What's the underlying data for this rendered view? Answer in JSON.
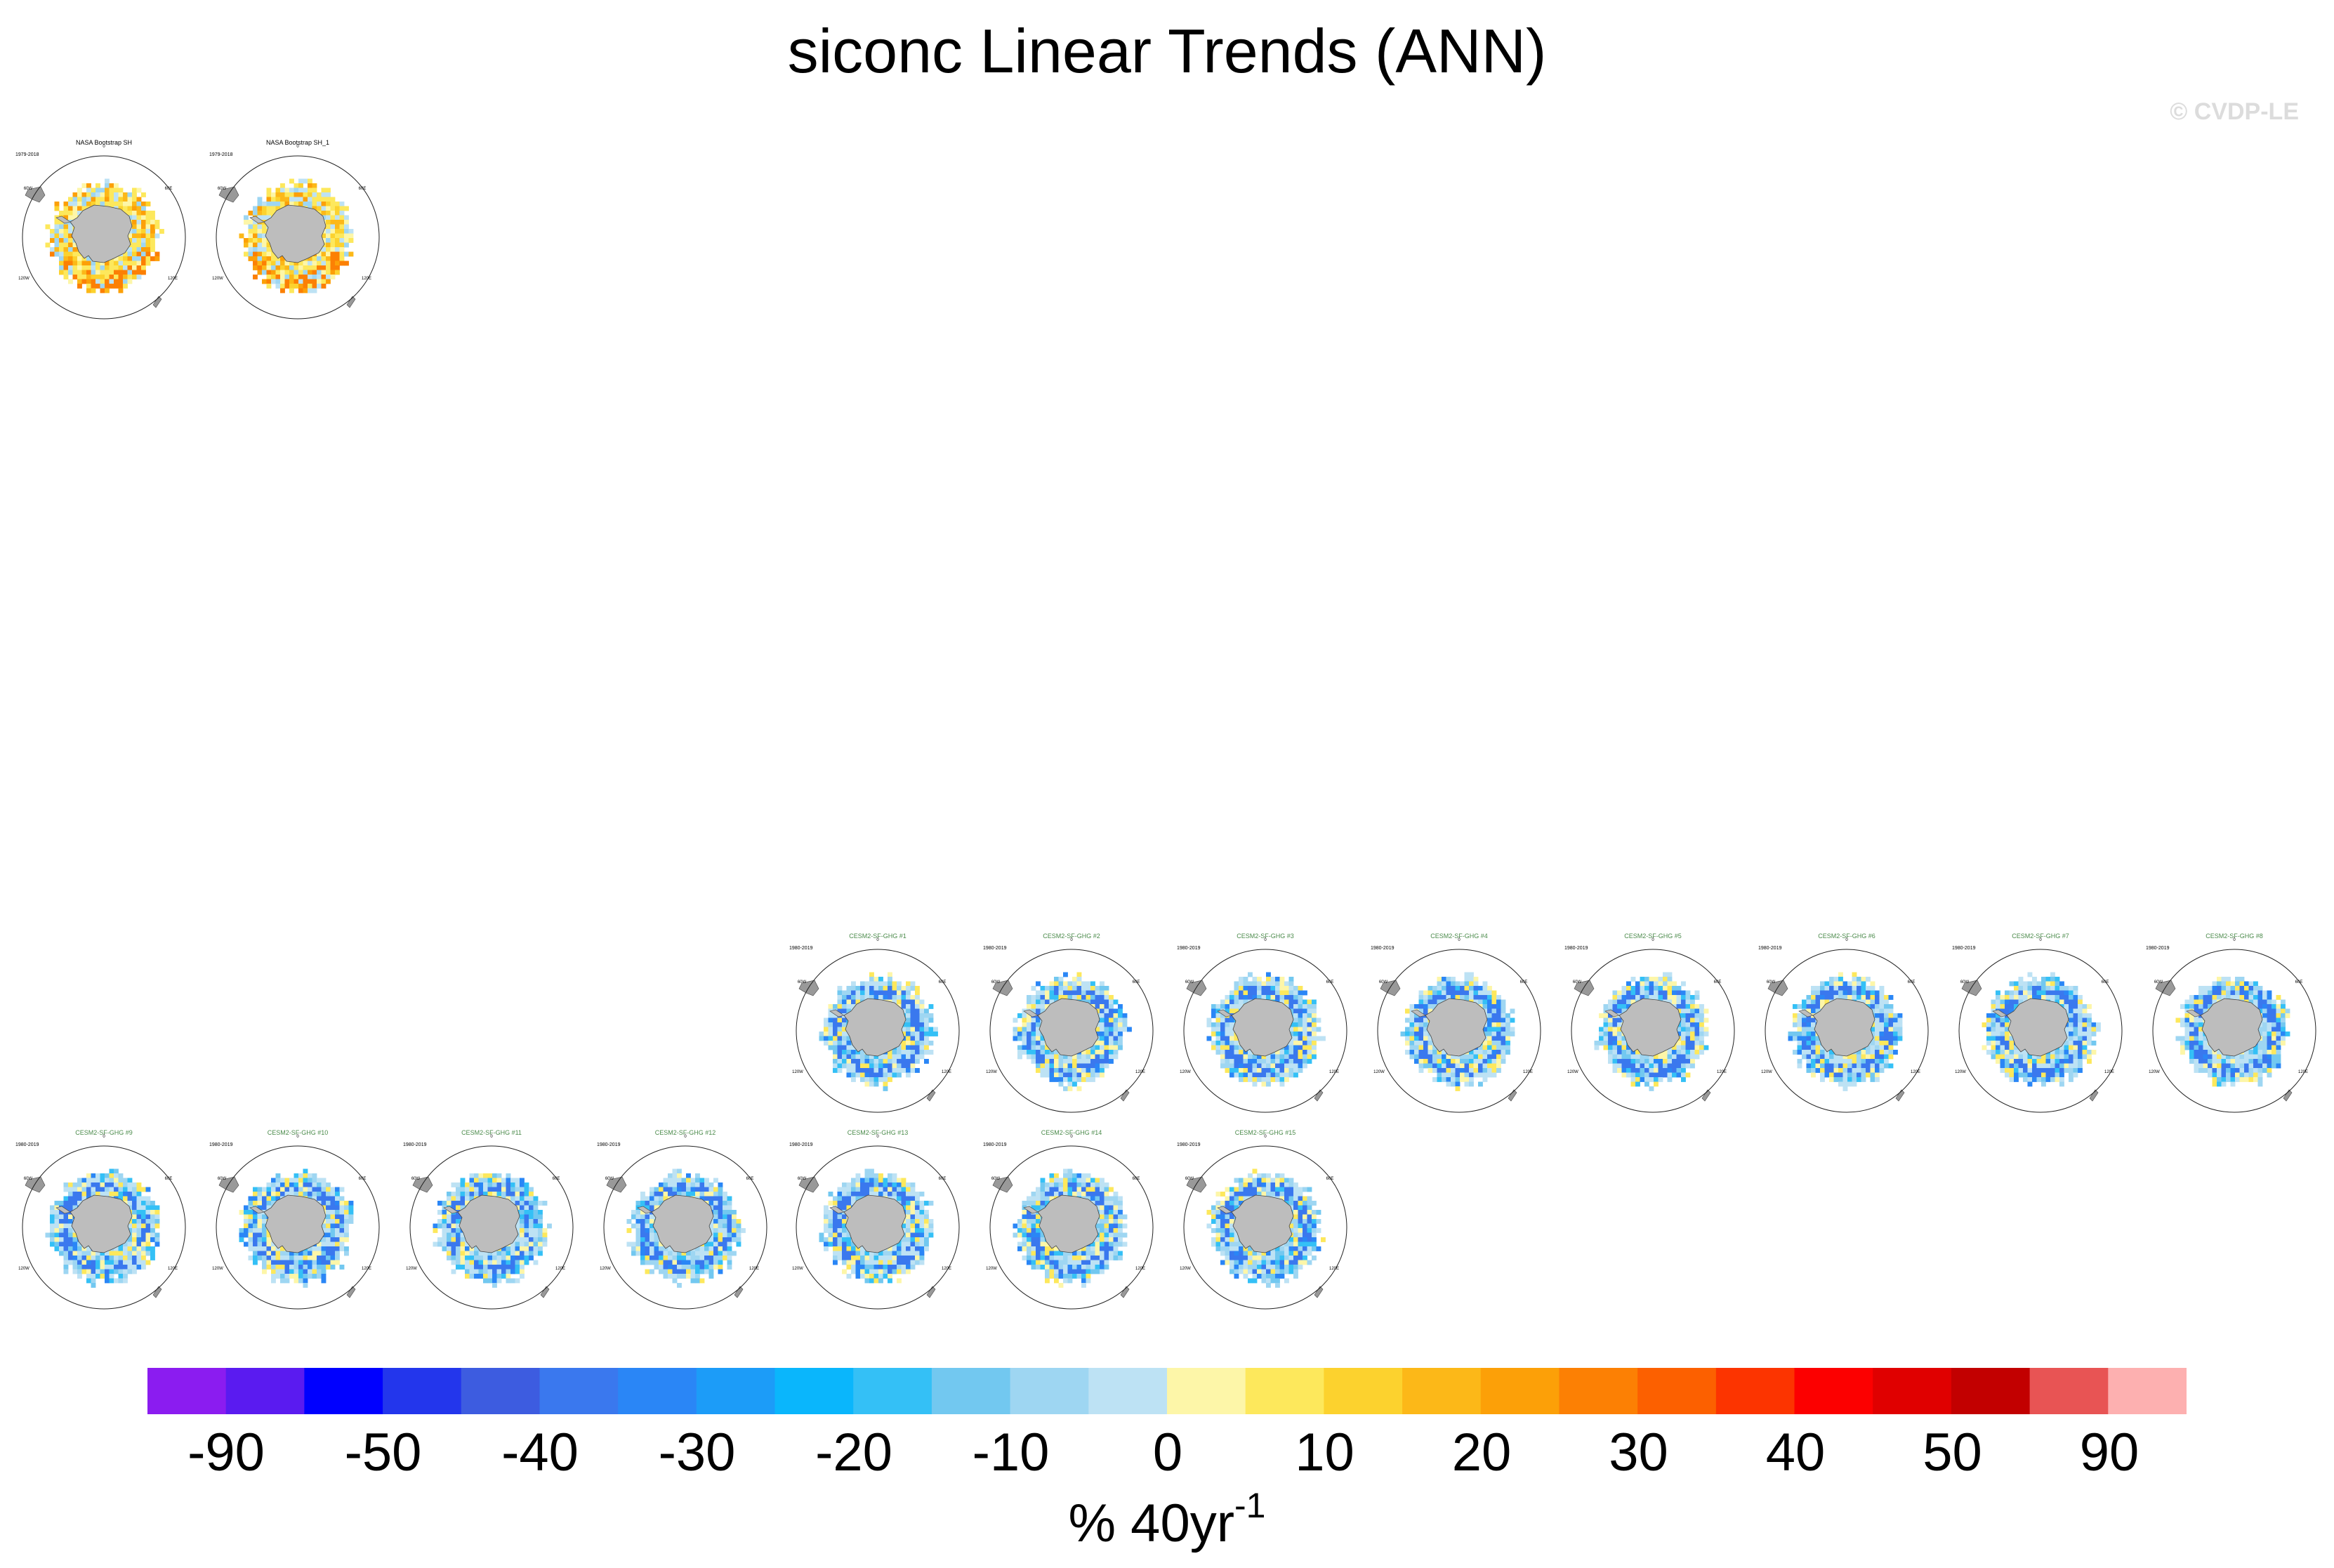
{
  "title": "siconc Linear Trends (ANN)",
  "copyright": "© CVDP-LE",
  "chart_data": {
    "type": "heatmap",
    "title": "siconc Linear Trends (ANN)",
    "projection": "south polar stereographic",
    "grid_labels": [
      "0",
      "60E",
      "120E",
      "180",
      "120W",
      "60W"
    ],
    "panels": [
      {
        "name": "NASA Bootstrap SH",
        "period": "1979-2018",
        "label_color": "#000000",
        "tone": "obs",
        "seed": 3
      },
      {
        "name": "NASA Bootstrap SH_1",
        "period": "1979-2018",
        "label_color": "#000000",
        "tone": "obs",
        "seed": 5
      },
      {
        "name": "CESM2-SF-GHG #1",
        "period": "1980-2019",
        "label_color": "#4a8a4a",
        "tone": "model",
        "seed": 7
      },
      {
        "name": "CESM2-SF-GHG #2",
        "period": "1980-2019",
        "label_color": "#4a8a4a",
        "tone": "model",
        "seed": 11
      },
      {
        "name": "CESM2-SF-GHG #3",
        "period": "1980-2019",
        "label_color": "#4a8a4a",
        "tone": "model",
        "seed": 13
      },
      {
        "name": "CESM2-SF-GHG #4",
        "period": "1980-2019",
        "label_color": "#4a8a4a",
        "tone": "model",
        "seed": 17
      },
      {
        "name": "CESM2-SF-GHG #5",
        "period": "1980-2019",
        "label_color": "#4a8a4a",
        "tone": "model",
        "seed": 19
      },
      {
        "name": "CESM2-SF-GHG #6",
        "period": "1980-2019",
        "label_color": "#4a8a4a",
        "tone": "model",
        "seed": 23
      },
      {
        "name": "CESM2-SF-GHG #7",
        "period": "1980-2019",
        "label_color": "#4a8a4a",
        "tone": "model",
        "seed": 29
      },
      {
        "name": "CESM2-SF-GHG #8",
        "period": "1980-2019",
        "label_color": "#4a8a4a",
        "tone": "model",
        "seed": 31
      },
      {
        "name": "CESM2-SF-GHG #9",
        "period": "1980-2019",
        "label_color": "#4a8a4a",
        "tone": "model",
        "seed": 37
      },
      {
        "name": "CESM2-SF-GHG #10",
        "period": "1980-2019",
        "label_color": "#4a8a4a",
        "tone": "model",
        "seed": 41
      },
      {
        "name": "CESM2-SF-GHG #11",
        "period": "1980-2019",
        "label_color": "#4a8a4a",
        "tone": "model",
        "seed": 43
      },
      {
        "name": "CESM2-SF-GHG #12",
        "period": "1980-2019",
        "label_color": "#4a8a4a",
        "tone": "model",
        "seed": 47
      },
      {
        "name": "CESM2-SF-GHG #13",
        "period": "1980-2019",
        "label_color": "#4a8a4a",
        "tone": "model",
        "seed": 53
      },
      {
        "name": "CESM2-SF-GHG #14",
        "period": "1980-2019",
        "label_color": "#4a8a4a",
        "tone": "model",
        "seed": 59
      },
      {
        "name": "CESM2-SF-GHG #15",
        "period": "1980-2019",
        "label_color": "#4a8a4a",
        "tone": "model",
        "seed": 61
      }
    ],
    "colorbar": {
      "colors": [
        "#8b1cf0",
        "#5a1bf0",
        "#0000ff",
        "#2336ec",
        "#3d5ce0",
        "#3a78ee",
        "#2a86f6",
        "#1c9cf8",
        "#0ab6fc",
        "#34c0f6",
        "#72c8f0",
        "#9ed6f2",
        "#bde2f4",
        "#fdf6a8",
        "#fde85c",
        "#fcd22e",
        "#fcb818",
        "#fca008",
        "#fc8004",
        "#fc6000",
        "#fc3400",
        "#fc0000",
        "#e00000",
        "#c20000",
        "#e85454",
        "#fdb0b0"
      ],
      "tick_labels": [
        "-90",
        "-50",
        "-40",
        "-30",
        "-20",
        "-10",
        "0",
        "10",
        "20",
        "30",
        "40",
        "50",
        "90"
      ],
      "unit_base": "% 40yr",
      "unit_exponent": "-1"
    }
  }
}
